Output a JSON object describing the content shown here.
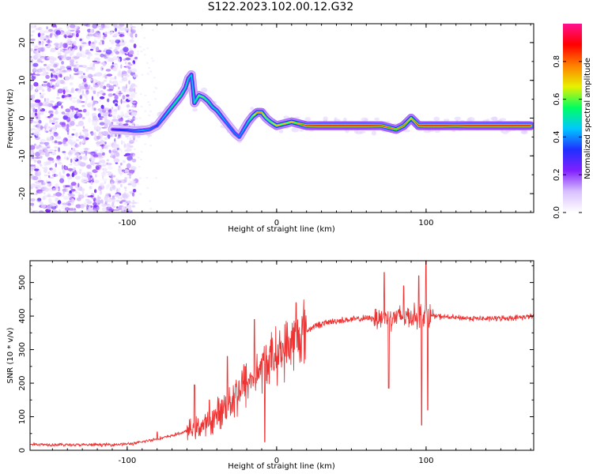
{
  "title": "S122.2023.102.00.12.G32",
  "chart_data": [
    {
      "type": "heatmap",
      "name": "spectrogram",
      "xlabel": "Height of straight line (km)",
      "ylabel": "Frequency (Hz)",
      "xlim": [
        -165,
        172
      ],
      "ylim": [
        -25,
        25
      ],
      "xticks": [
        -100,
        0,
        100
      ],
      "yticks": [
        -20,
        -10,
        0,
        10,
        20
      ],
      "grid": false,
      "colorbar": {
        "label": "Normalized spectral amplitude",
        "range": [
          0,
          1
        ],
        "ticks": [
          0.0,
          0.2,
          0.4,
          0.6,
          0.8
        ],
        "colormap": [
          "#ffffff",
          "#d8c0ff",
          "#8020ff",
          "#2030ff",
          "#00c8ff",
          "#00ff60",
          "#e8f000",
          "#ff8000",
          "#ff0000",
          "#ff1090"
        ]
      },
      "ridge": {
        "x": [
          -110,
          -100,
          -95,
          -90,
          -85,
          -80,
          -76,
          -72,
          -68,
          -64,
          -61,
          -59,
          -57,
          -55,
          -52,
          -49,
          -46,
          -43,
          -40,
          -36,
          -32,
          -28,
          -25,
          -22,
          -19,
          -16,
          -13,
          -10,
          -7,
          -4,
          0,
          5,
          10,
          15,
          20,
          30,
          40,
          50,
          60,
          70,
          75,
          80,
          85,
          90,
          95,
          100,
          110,
          120,
          130,
          140,
          150,
          160,
          170
        ],
        "y": [
          -3,
          -3.2,
          -3.4,
          -3.3,
          -3,
          -2,
          0,
          2,
          4,
          6,
          8,
          10.5,
          11.5,
          4,
          6,
          5.5,
          4.5,
          3,
          2,
          0,
          -2,
          -4,
          -5,
          -3,
          -1,
          0.5,
          1.5,
          1.5,
          0,
          -1,
          -2,
          -1.5,
          -1,
          -1.5,
          -2,
          -2,
          -2,
          -2,
          -2,
          -2,
          -2.5,
          -3,
          -2,
          0,
          -2,
          -2,
          -2,
          -2,
          -2,
          -2,
          -2,
          -2,
          -2
        ],
        "amplitude": [
          0.3,
          0.35,
          0.4,
          0.45,
          0.4,
          0.35,
          0.45,
          0.5,
          0.55,
          0.55,
          0.5,
          0.5,
          0.45,
          0.5,
          0.6,
          0.6,
          0.55,
          0.5,
          0.5,
          0.45,
          0.4,
          0.4,
          0.4,
          0.45,
          0.5,
          0.6,
          0.75,
          0.75,
          0.6,
          0.6,
          0.7,
          0.7,
          0.7,
          0.75,
          0.85,
          0.9,
          0.9,
          0.9,
          0.9,
          0.85,
          0.8,
          0.75,
          0.8,
          0.7,
          0.85,
          0.9,
          0.9,
          0.85,
          0.9,
          0.9,
          0.9,
          0.9,
          0.9
        ]
      },
      "noise_region_x": [
        -165,
        -100
      ]
    },
    {
      "type": "line",
      "name": "snr",
      "xlabel": "Height of straight line (km)",
      "ylabel": "SNR (10 * v/v)",
      "xlim": [
        -165,
        172
      ],
      "ylim": [
        0,
        565
      ],
      "xticks": [
        -100,
        0,
        100
      ],
      "yticks": [
        0,
        100,
        200,
        300,
        400,
        500
      ],
      "grid": false,
      "color": "#ee3333",
      "trend": {
        "x": [
          -165,
          -150,
          -130,
          -110,
          -95,
          -85,
          -75,
          -65,
          -55,
          -45,
          -35,
          -25,
          -15,
          -5,
          5,
          15,
          25,
          35,
          45,
          60,
          80,
          100,
          120,
          140,
          160,
          172
        ],
        "y": [
          18,
          17,
          16,
          17,
          20,
          30,
          38,
          50,
          65,
          80,
          130,
          180,
          220,
          270,
          300,
          340,
          370,
          382,
          388,
          393,
          398,
          402,
          395,
          392,
          395,
          400
        ]
      },
      "spikes": [
        {
          "x": -80,
          "y": 55
        },
        {
          "x": -55,
          "y": 195
        },
        {
          "x": -45,
          "y": 150
        },
        {
          "x": -33,
          "y": 280
        },
        {
          "x": -15,
          "y": 390
        },
        {
          "x": -8,
          "y": 25
        },
        {
          "x": 13,
          "y": 440
        },
        {
          "x": 72,
          "y": 530
        },
        {
          "x": 75,
          "y": 185
        },
        {
          "x": 85,
          "y": 490
        },
        {
          "x": 95,
          "y": 520
        },
        {
          "x": 97,
          "y": 75
        },
        {
          "x": 100,
          "y": 575
        },
        {
          "x": 101,
          "y": 120
        }
      ]
    }
  ]
}
